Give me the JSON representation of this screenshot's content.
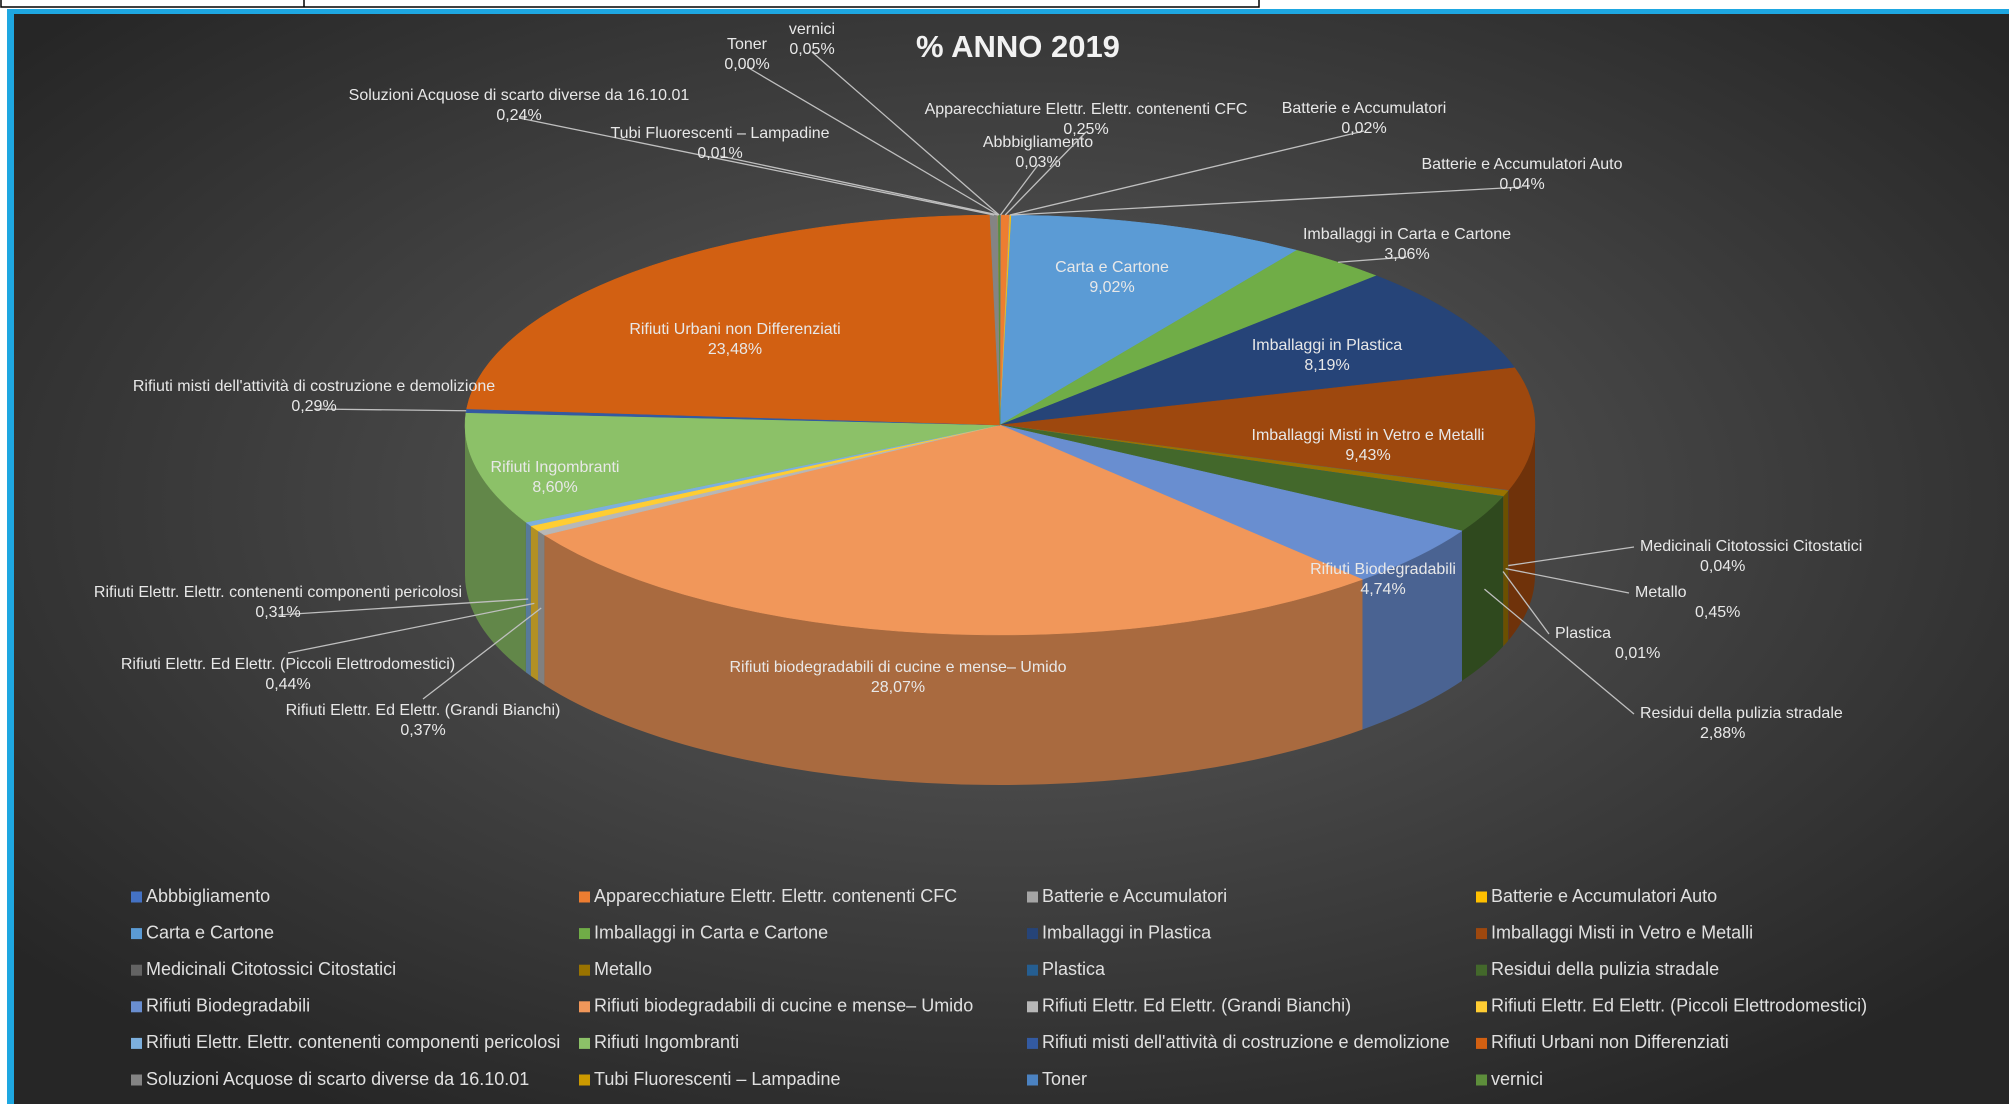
{
  "chart_data": {
    "type": "pie",
    "title": "% ANNO 2019",
    "categories": [
      "Abbbigliamento",
      "Apparecchiature Elettr. Elettr. contenenti CFC",
      "Batterie e Accumulatori",
      "Batterie e Accumulatori Auto",
      "Carta e Cartone",
      "Imballaggi in Carta e Cartone",
      "Imballaggi in Plastica",
      "Imballaggi Misti in Vetro e Metalli",
      "Medicinali Citotossici Citostatici",
      "Metallo",
      "Plastica",
      "Residui della pulizia stradale",
      "Rifiuti Biodegradabili",
      "Rifiuti biodegradabili di cucine e mense– Umido",
      "Rifiuti Elettr. Ed Elettr. (Grandi Bianchi)",
      "Rifiuti Elettr. Ed Elettr. (Piccoli Elettrodomestici)",
      "Rifiuti Elettr. Elettr. contenenti componenti pericolosi",
      "Rifiuti Ingombranti",
      "Rifiuti misti dell'attività di costruzione e demolizione",
      "Rifiuti Urbani non Differenziati",
      "Soluzioni Acquose di scarto diverse da 16.10.01",
      "Tubi Fluorescenti – Lampadine",
      "Toner",
      "vernici"
    ],
    "values": [
      0.03,
      0.25,
      0.02,
      0.04,
      9.02,
      3.06,
      8.19,
      9.43,
      0.04,
      0.45,
      0.01,
      2.88,
      4.74,
      28.07,
      0.37,
      0.44,
      0.31,
      8.6,
      0.29,
      23.48,
      0.24,
      0.01,
      0.0,
      0.05
    ],
    "value_labels": [
      "0,03%",
      "0,25%",
      "0,02%",
      "0,04%",
      "9,02%",
      "3,06%",
      "8,19%",
      "9,43%",
      "0,04%",
      "0,45%",
      "0,01%",
      "2,88%",
      "4,74%",
      "28,07%",
      "0,37%",
      "0,44%",
      "0,31%",
      "8,60%",
      "0,29%",
      "23,48%",
      "0,24%",
      "0,01%",
      "0,00%",
      "0,05%"
    ],
    "colors": [
      "#4472c4",
      "#ed7d31",
      "#a5a5a5",
      "#ffc000",
      "#5b9bd5",
      "#70ad47",
      "#264478",
      "#9e480e",
      "#636363",
      "#997300",
      "#255e91",
      "#43682b",
      "#698ed0",
      "#f1975a",
      "#b7b7b7",
      "#ffcd33",
      "#7cafdd",
      "#8cc168",
      "#335aa1",
      "#d26012",
      "#848484",
      "#cc9a00",
      "#4b82c1",
      "#5d8e3b"
    ],
    "legend": "bottom"
  }
}
